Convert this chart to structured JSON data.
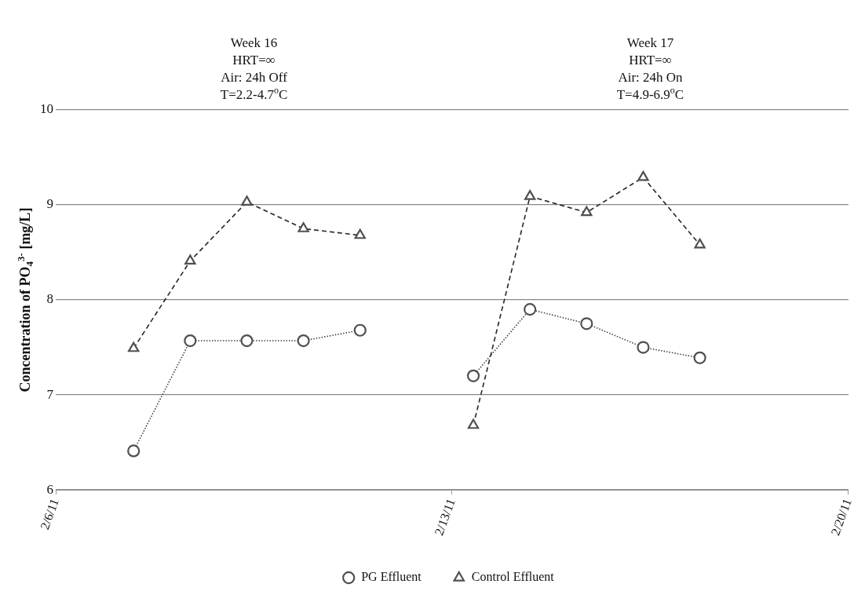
{
  "chart_data": {
    "type": "line",
    "ylabel": "Concentration of PO$_{4}$$^{3-}$ [mg/L]",
    "annotations": [
      "Week 16\nHRT=∞\nAir: 24h Off\nT=2.2-4.7$^{o}$C",
      "Week 17\nHRT=∞\nAir: 24h On\nT=4.9-6.9$^{o}$C"
    ],
    "x": [
      "--02-07T09:00",
      "--02-08T09:00",
      "--02-09T09:00",
      "--02-10T09:00",
      "--02-11T09:00",
      "--02-12T09:00",
      "--02-13T09:00",
      "--02-14T09:00",
      "--02-15T09:00",
      "--02-16T09:00",
      "--02-17T09:00"
    ],
    "series": [
      {
        "name": "PG Effluent",
        "color": "#404040",
        "marker": "circle",
        "line_style": "dotted",
        "values": [
          6.41,
          7.57,
          7.57,
          7.57,
          7.68,
          null,
          7.2,
          7.9,
          7.75,
          7.5,
          7.39
        ]
      },
      {
        "name": "Control Effluent",
        "color": "#262626",
        "marker": "triangle",
        "line_style": "dashed",
        "values": [
          7.49,
          8.41,
          9.03,
          8.75,
          8.68,
          null,
          6.68,
          9.09,
          8.92,
          9.29,
          8.58
        ]
      }
    ],
    "xlim": [
      "--02-06",
      "--02-20"
    ],
    "xticks": [
      {
        "value": "--02-06",
        "label": "2/6/11"
      },
      {
        "value": "--02-13",
        "label": "2/13/11"
      },
      {
        "value": "--02-20",
        "label": "2/20/11"
      }
    ],
    "ylim": [
      6,
      10
    ],
    "yticks": [
      6,
      7,
      8,
      9,
      10
    ],
    "grid": "y",
    "legend": "bottom"
  }
}
